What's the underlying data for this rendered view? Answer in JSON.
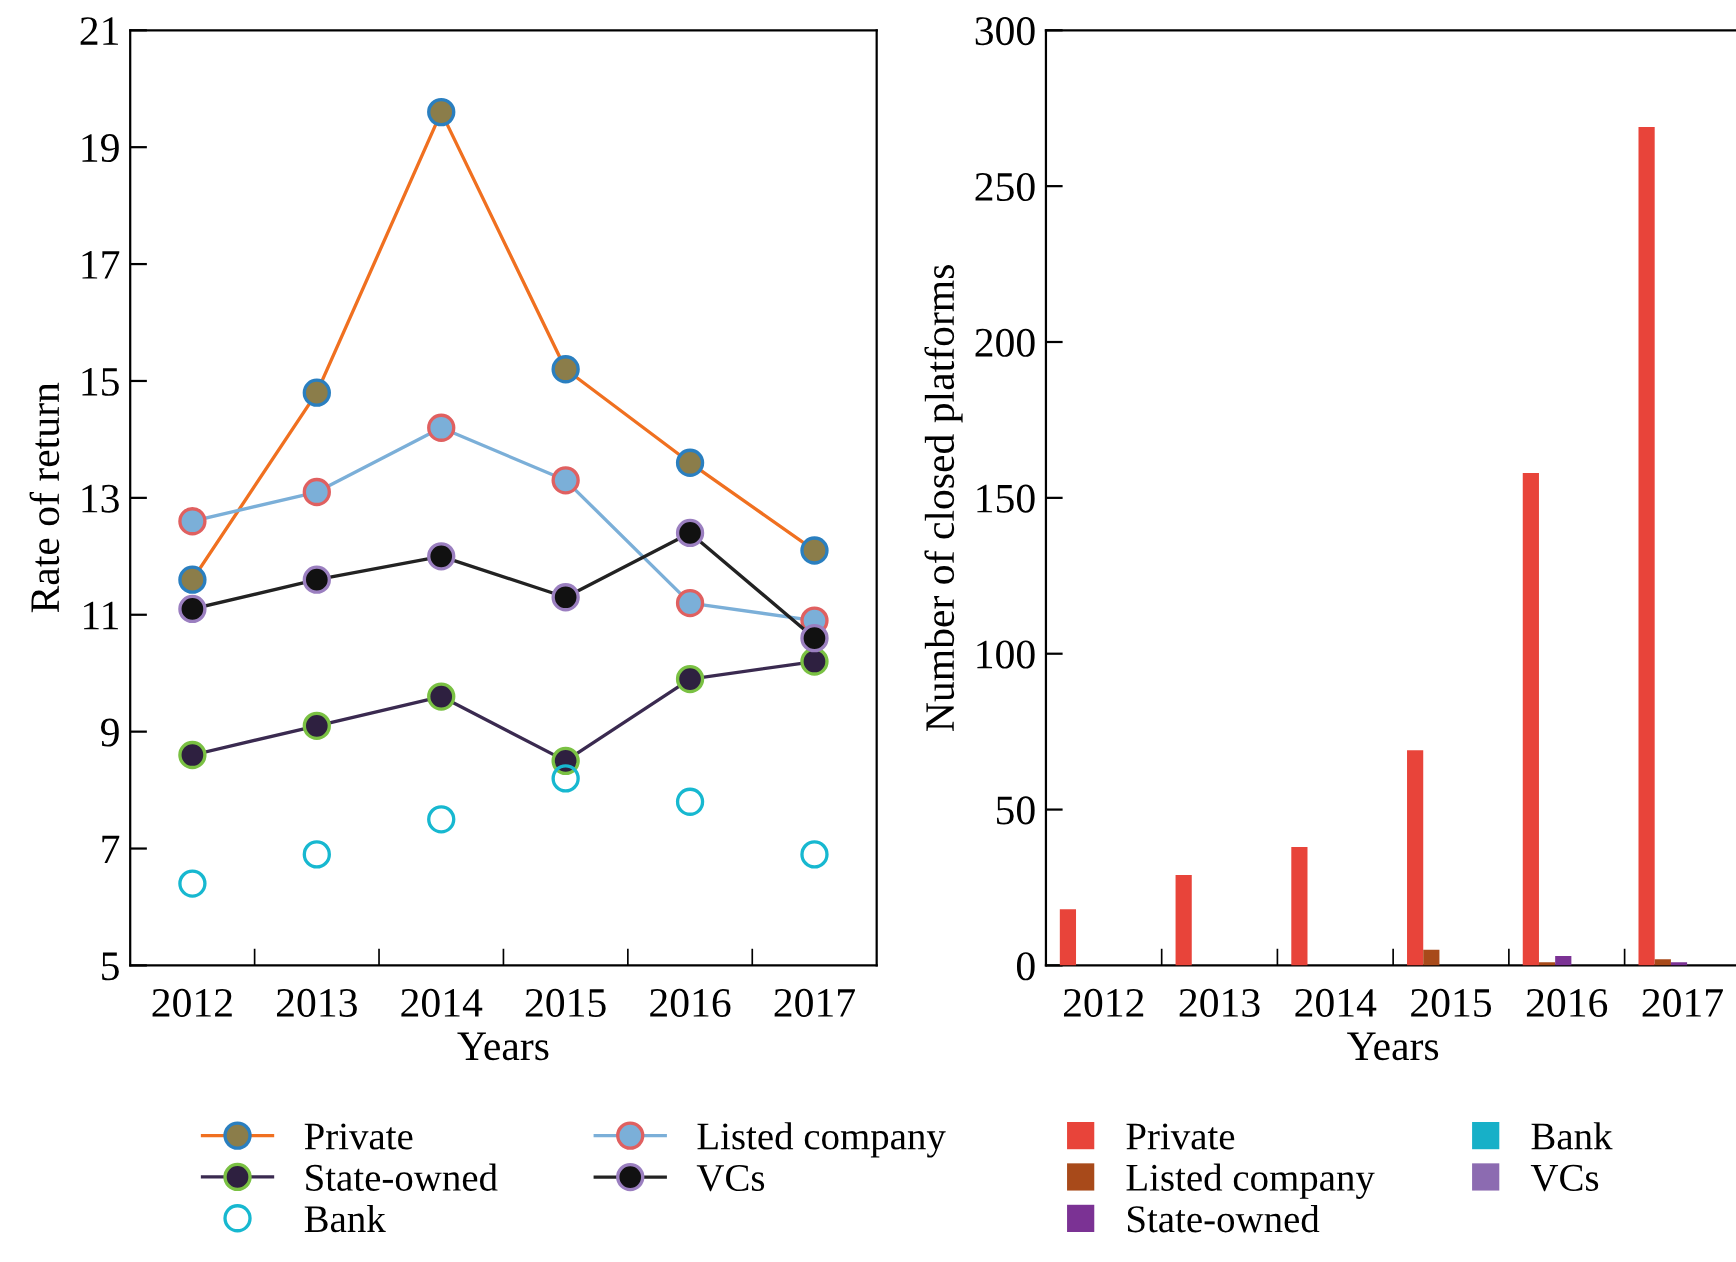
{
  "chart_data": [
    {
      "type": "line",
      "xlabel": "Years",
      "ylabel": "Rate of return",
      "categories": [
        "2012",
        "2013",
        "2014",
        "2015",
        "2016",
        "2017"
      ],
      "ylim": [
        5,
        21
      ],
      "yticks": [
        5,
        7,
        9,
        11,
        13,
        15,
        17,
        19,
        21
      ],
      "grid": false,
      "legend": "bottom",
      "marker": "circle",
      "line_style": "solid",
      "series": [
        {
          "name": "Private",
          "color": "#f07020",
          "values": [
            11.6,
            14.8,
            19.6,
            15.2,
            13.6,
            12.1
          ]
        },
        {
          "name": "State-owned",
          "color": "#3a2a50",
          "values": [
            8.6,
            9.1,
            9.6,
            8.5,
            9.9,
            10.2
          ]
        },
        {
          "name": "Bank",
          "color": "#17b8d0",
          "type": "scatter",
          "values": [
            6.4,
            6.9,
            7.5,
            8.2,
            7.8,
            6.9
          ]
        },
        {
          "name": "Listed company",
          "color": "#7bafd8",
          "values": [
            12.6,
            13.1,
            14.2,
            13.3,
            11.2,
            10.9
          ]
        },
        {
          "name": "VCs",
          "color": "#222222",
          "values": [
            11.1,
            11.6,
            12.0,
            11.3,
            12.4,
            10.6
          ]
        }
      ]
    },
    {
      "type": "bar",
      "xlabel": "Years",
      "ylabel": "Number of closed platforms",
      "categories": [
        "2012",
        "2013",
        "2014",
        "2015",
        "2016",
        "2017"
      ],
      "ylim": [
        0,
        300
      ],
      "yticks": [
        0,
        50,
        100,
        150,
        200,
        250,
        300
      ],
      "grid": false,
      "legend": "bottom",
      "series": [
        {
          "name": "Private",
          "color": "#e8443a",
          "values": [
            18,
            29,
            38,
            69,
            158,
            269
          ]
        },
        {
          "name": "Listed company",
          "color": "#a84a1a",
          "values": [
            0,
            0,
            0,
            5,
            1,
            2
          ]
        },
        {
          "name": "State-owned",
          "color": "#7b3294",
          "values": [
            0,
            0,
            0,
            0,
            3,
            1
          ]
        },
        {
          "name": "Bank",
          "color": "#17b0c8",
          "values": [
            0,
            0,
            0,
            0,
            0,
            0
          ]
        },
        {
          "name": "VCs",
          "color": "#8c6bb1",
          "values": [
            0,
            0,
            0,
            0,
            0,
            0
          ]
        }
      ]
    }
  ]
}
